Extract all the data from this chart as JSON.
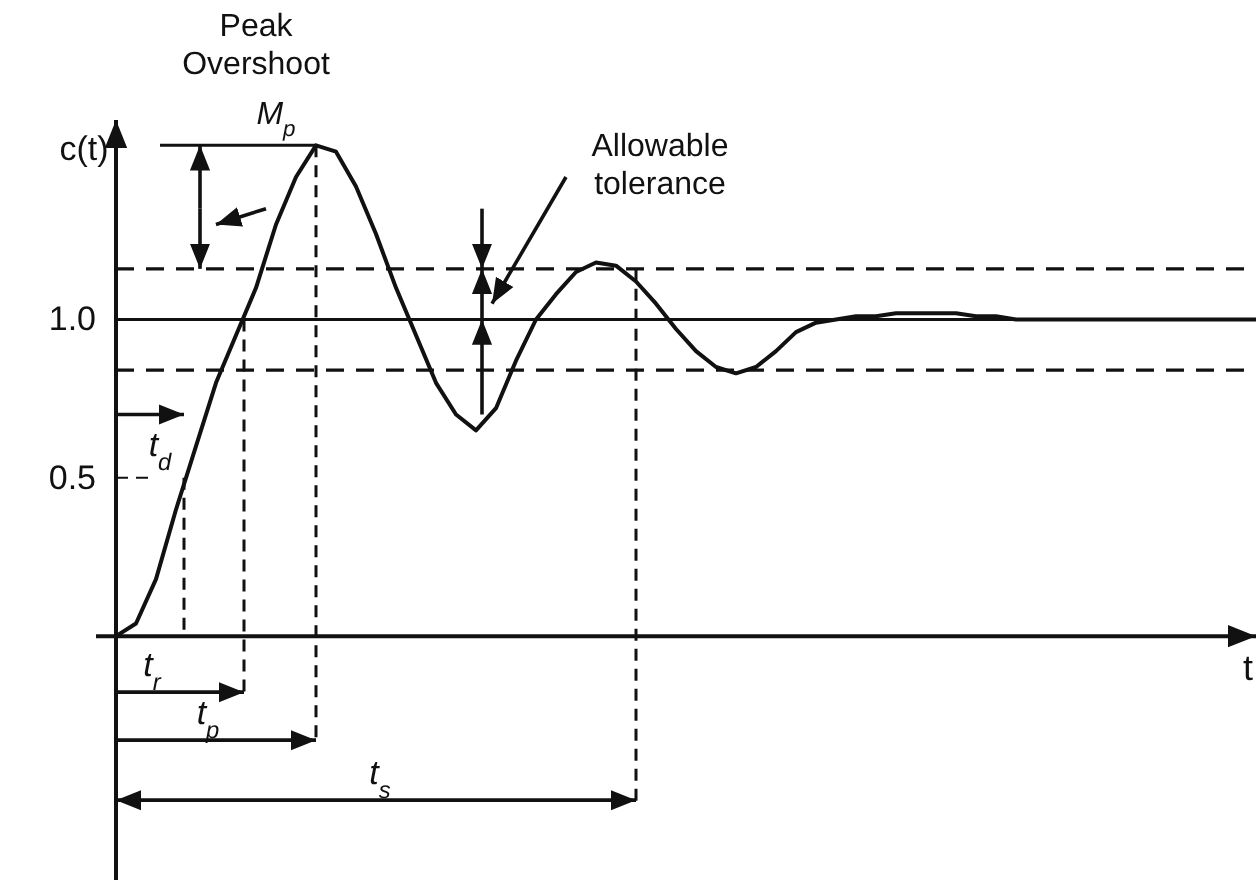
{
  "chart_data": {
    "type": "line",
    "xlabel": "t",
    "ylabel": "c(t)",
    "categories": [
      null,
      null,
      null,
      null,
      null,
      null,
      null,
      null,
      null,
      null,
      null,
      null,
      null,
      null,
      null,
      null,
      null,
      null,
      null,
      null,
      null,
      null,
      null,
      null,
      null,
      null,
      null,
      null,
      null,
      null,
      null,
      null,
      null,
      null,
      null,
      null,
      null,
      null,
      null,
      null,
      null,
      null,
      null,
      null,
      null,
      null,
      null,
      null,
      null,
      null,
      null,
      null,
      null,
      null,
      null,
      null,
      null,
      null
    ],
    "series": [
      {
        "color": "#111111",
        "values": [
          0,
          0.04,
          0.18,
          0.4,
          0.6,
          0.8,
          0.95,
          1.1,
          1.3,
          1.45,
          1.55,
          1.53,
          1.42,
          1.27,
          1.1,
          0.95,
          0.8,
          0.7,
          0.65,
          0.72,
          0.87,
          1.0,
          1.08,
          1.15,
          1.18,
          1.17,
          1.12,
          1.05,
          0.97,
          0.9,
          0.85,
          0.83,
          0.85,
          0.9,
          0.96,
          0.99,
          1.0,
          1.01,
          1.01,
          1.02,
          1.02,
          1.02,
          1.02,
          1.01,
          1.01,
          1.0,
          1.0,
          1.0,
          1.0,
          1.0,
          1.0,
          1.0,
          1.0,
          1.0,
          1.0,
          1.0,
          1.0,
          1.0
        ]
      }
    ],
    "ylim": [
      -0.77,
      1.63
    ],
    "yticks": [
      0.5,
      {
        "value": 1.0,
        "label": "1.0"
      }
    ],
    "tick_labels": "y",
    "grid": false,
    "marker": "none",
    "line_style": "solid",
    "ref_lines": [
      {
        "axis": "y",
        "value": 1.0,
        "color": "#111111",
        "line_style": "solid"
      },
      {
        "axis": "y",
        "value": 1.16,
        "color": "#111111",
        "line_style": "dashed"
      },
      {
        "axis": "y",
        "value": 0.84,
        "color": "#111111",
        "line_style": "dashed"
      }
    ],
    "annotations": [
      "Peak Overshoot",
      "M$_{p}$",
      "Allowable tolerance",
      "t$_{d}$",
      "t$_{r}$",
      "t$_{p}$",
      "t$_{s}$"
    ]
  }
}
